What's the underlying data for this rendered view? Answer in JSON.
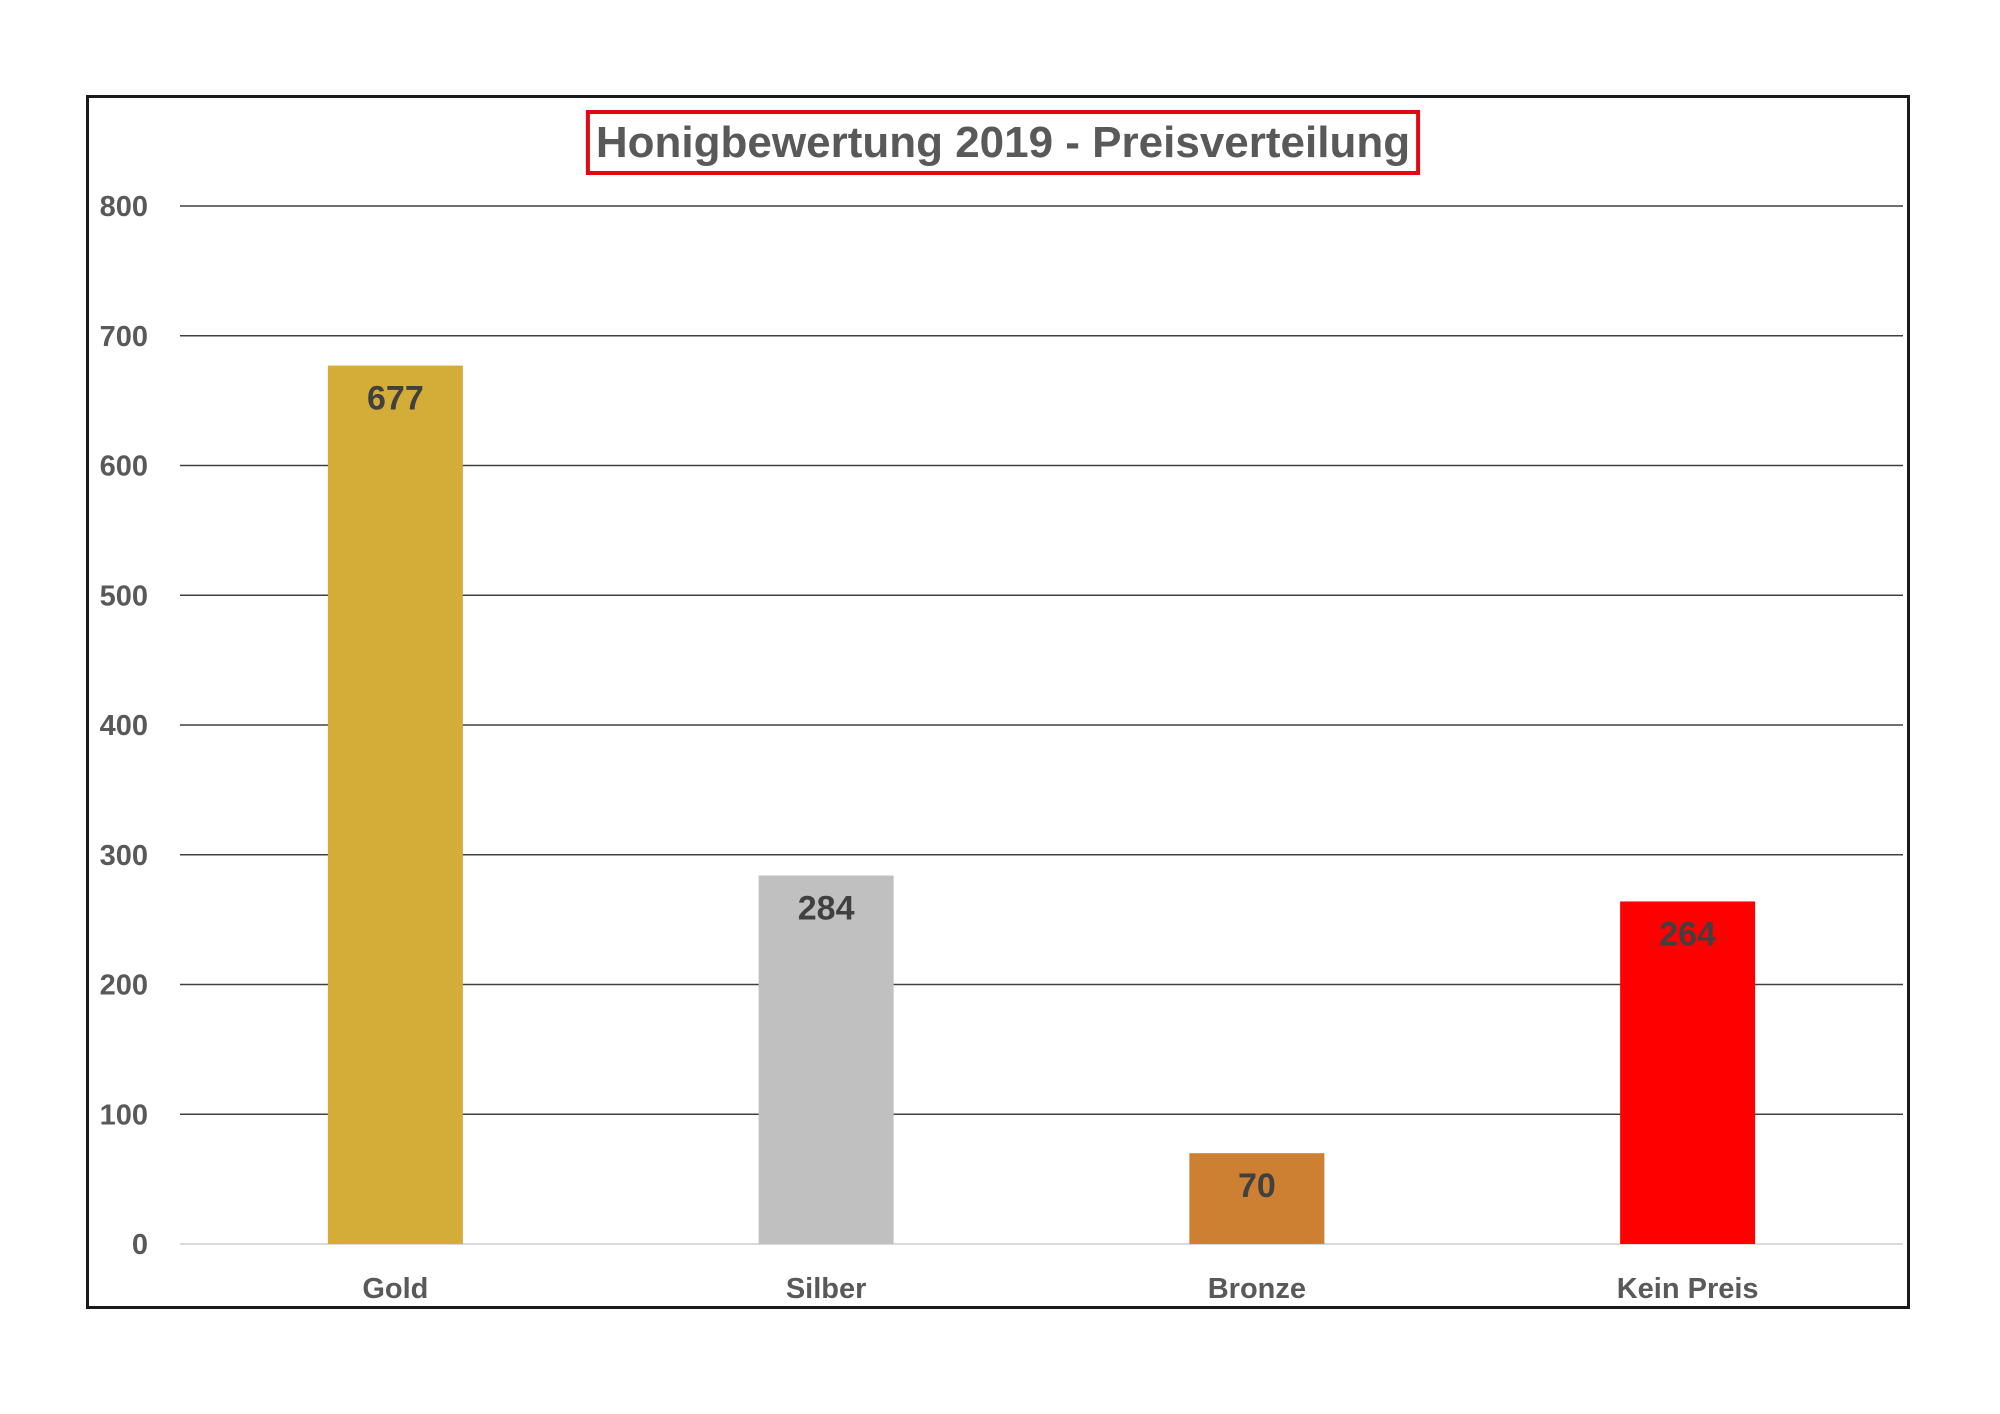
{
  "chart_data": {
    "type": "bar",
    "title": "Honigbewertung 2019 - Preisverteilung",
    "categories": [
      "Gold",
      "Silber",
      "Bronze",
      "Kein Preis"
    ],
    "values": [
      677,
      284,
      70,
      264
    ],
    "data_labels": [
      "677",
      "284",
      "70",
      "264"
    ],
    "bar_colors": [
      "#D4AC38",
      "#C0C0C0",
      "#CD7F32",
      "#FF0000"
    ],
    "xlabel": "",
    "ylabel": "",
    "ylim": [
      0,
      800
    ],
    "yticks": [
      0,
      100,
      200,
      300,
      400,
      500,
      600,
      700,
      800
    ],
    "ytick_labels": [
      "0",
      "100",
      "200",
      "300",
      "400",
      "500",
      "600",
      "700",
      "800"
    ],
    "grid": true,
    "legend": "none",
    "title_box_color": "#E30613"
  }
}
